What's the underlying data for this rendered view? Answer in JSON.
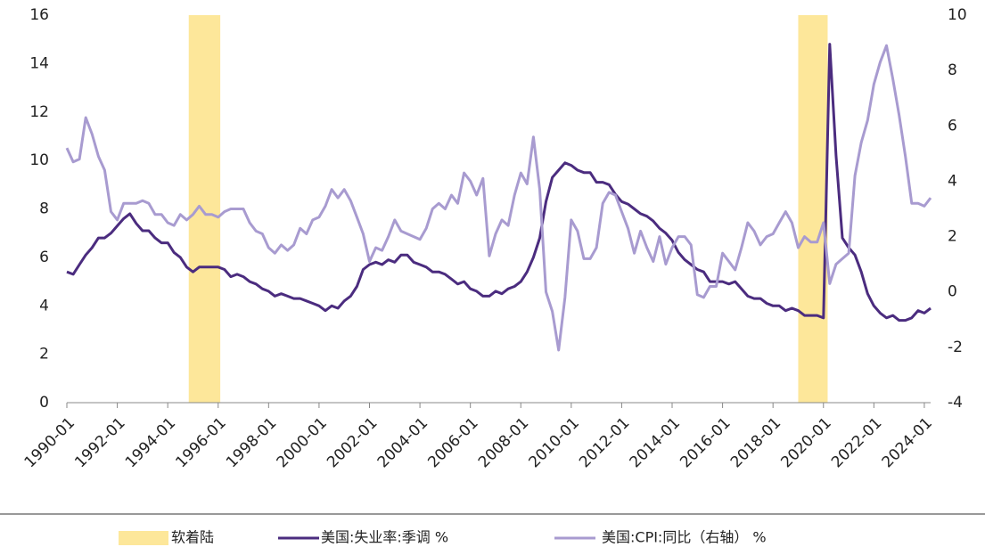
{
  "chart_data": {
    "type": "line",
    "x": [
      "1990-01",
      "1990-04",
      "1990-07",
      "1990-10",
      "1991-01",
      "1991-04",
      "1991-07",
      "1991-10",
      "1992-01",
      "1992-04",
      "1992-07",
      "1992-10",
      "1993-01",
      "1993-04",
      "1993-07",
      "1993-10",
      "1994-01",
      "1994-04",
      "1994-07",
      "1994-10",
      "1995-01",
      "1995-04",
      "1995-07",
      "1995-10",
      "1996-01",
      "1996-04",
      "1996-07",
      "1996-10",
      "1997-01",
      "1997-04",
      "1997-07",
      "1997-10",
      "1998-01",
      "1998-04",
      "1998-07",
      "1998-10",
      "1999-01",
      "1999-04",
      "1999-07",
      "1999-10",
      "2000-01",
      "2000-04",
      "2000-07",
      "2000-10",
      "2001-01",
      "2001-04",
      "2001-07",
      "2001-10",
      "2002-01",
      "2002-04",
      "2002-07",
      "2002-10",
      "2003-01",
      "2003-04",
      "2003-07",
      "2003-10",
      "2004-01",
      "2004-04",
      "2004-07",
      "2004-10",
      "2005-01",
      "2005-04",
      "2005-07",
      "2005-10",
      "2006-01",
      "2006-04",
      "2006-07",
      "2006-10",
      "2007-01",
      "2007-04",
      "2007-07",
      "2007-10",
      "2008-01",
      "2008-04",
      "2008-07",
      "2008-10",
      "2009-01",
      "2009-04",
      "2009-07",
      "2009-10",
      "2010-01",
      "2010-04",
      "2010-07",
      "2010-10",
      "2011-01",
      "2011-04",
      "2011-07",
      "2011-10",
      "2012-01",
      "2012-04",
      "2012-07",
      "2012-10",
      "2013-01",
      "2013-04",
      "2013-07",
      "2013-10",
      "2014-01",
      "2014-04",
      "2014-07",
      "2014-10",
      "2015-01",
      "2015-04",
      "2015-07",
      "2015-10",
      "2016-01",
      "2016-04",
      "2016-07",
      "2016-10",
      "2017-01",
      "2017-04",
      "2017-07",
      "2017-10",
      "2018-01",
      "2018-04",
      "2018-07",
      "2018-10",
      "2019-01",
      "2019-04",
      "2019-07",
      "2019-10",
      "2020-01",
      "2020-04",
      "2020-07",
      "2020-10",
      "2021-01",
      "2021-04",
      "2021-07",
      "2021-10",
      "2022-01",
      "2022-04",
      "2022-07",
      "2022-10",
      "2023-01",
      "2023-04",
      "2023-07",
      "2023-10",
      "2024-01",
      "2024-04"
    ],
    "series": [
      {
        "name": "美国:失业率:季调 %",
        "color": "#4b2c7f",
        "axis": "y",
        "values": [
          5.4,
          5.3,
          5.7,
          6.1,
          6.4,
          6.8,
          6.8,
          7.0,
          7.3,
          7.6,
          7.8,
          7.4,
          7.1,
          7.1,
          6.8,
          6.6,
          6.6,
          6.2,
          6.0,
          5.6,
          5.4,
          5.6,
          5.6,
          5.6,
          5.6,
          5.5,
          5.2,
          5.3,
          5.2,
          5.0,
          4.9,
          4.7,
          4.6,
          4.4,
          4.5,
          4.4,
          4.3,
          4.3,
          4.2,
          4.1,
          4.0,
          3.8,
          4.0,
          3.9,
          4.2,
          4.4,
          4.8,
          5.5,
          5.7,
          5.8,
          5.7,
          5.9,
          5.8,
          6.1,
          6.1,
          5.8,
          5.7,
          5.6,
          5.4,
          5.4,
          5.3,
          5.1,
          4.9,
          5.0,
          4.7,
          4.6,
          4.4,
          4.4,
          4.6,
          4.5,
          4.7,
          4.8,
          5.0,
          5.4,
          6.0,
          6.8,
          8.3,
          9.3,
          9.6,
          9.9,
          9.8,
          9.6,
          9.5,
          9.5,
          9.1,
          9.1,
          9.0,
          8.6,
          8.3,
          8.2,
          8.0,
          7.8,
          7.7,
          7.5,
          7.2,
          7.0,
          6.7,
          6.2,
          5.9,
          5.7,
          5.5,
          5.4,
          5.0,
          5.0,
          5.0,
          4.9,
          5.0,
          4.7,
          4.4,
          4.3,
          4.3,
          4.1,
          4.0,
          4.0,
          3.8,
          3.9,
          3.8,
          3.6,
          3.6,
          3.6,
          3.5,
          14.8,
          10.2,
          6.8,
          6.4,
          6.1,
          5.4,
          4.5,
          4.0,
          3.7,
          3.5,
          3.6,
          3.4,
          3.4,
          3.5,
          3.8,
          3.7,
          3.9
        ]
      },
      {
        "name": "美国:CPI:同比（右轴） %",
        "color": "#a89bd0",
        "axis": "y2",
        "values": [
          5.2,
          4.7,
          4.8,
          6.3,
          5.7,
          4.9,
          4.4,
          2.9,
          2.6,
          3.2,
          3.2,
          3.2,
          3.3,
          3.2,
          2.8,
          2.8,
          2.5,
          2.4,
          2.8,
          2.6,
          2.8,
          3.1,
          2.8,
          2.8,
          2.7,
          2.9,
          3.0,
          3.0,
          3.0,
          2.5,
          2.2,
          2.1,
          1.6,
          1.4,
          1.7,
          1.5,
          1.7,
          2.3,
          2.1,
          2.6,
          2.7,
          3.1,
          3.7,
          3.4,
          3.7,
          3.3,
          2.7,
          2.1,
          1.1,
          1.6,
          1.5,
          2.0,
          2.6,
          2.2,
          2.1,
          2.0,
          1.9,
          2.3,
          3.0,
          3.2,
          3.0,
          3.5,
          3.2,
          4.3,
          4.0,
          3.5,
          4.1,
          1.3,
          2.1,
          2.6,
          2.4,
          3.5,
          4.3,
          3.9,
          5.6,
          3.7,
          0.0,
          -0.7,
          -2.1,
          -0.2,
          2.6,
          2.2,
          1.2,
          1.2,
          1.6,
          3.2,
          3.6,
          3.5,
          2.9,
          2.3,
          1.4,
          2.2,
          1.6,
          1.1,
          2.0,
          1.0,
          1.6,
          2.0,
          2.0,
          1.7,
          -0.1,
          -0.2,
          0.2,
          0.2,
          1.4,
          1.1,
          0.8,
          1.6,
          2.5,
          2.2,
          1.7,
          2.0,
          2.1,
          2.5,
          2.9,
          2.5,
          1.6,
          2.0,
          1.8,
          1.8,
          2.5,
          0.3,
          1.0,
          1.2,
          1.4,
          4.2,
          5.4,
          6.2,
          7.5,
          8.3,
          8.9,
          7.7,
          6.4,
          4.9,
          3.2,
          3.2,
          3.1,
          3.4
        ]
      }
    ],
    "bands": [
      {
        "name": "软着陆",
        "color": "#fde79a",
        "start": "1994-11",
        "end": "1996-02"
      },
      {
        "name": "软着陆",
        "color": "#fde79a",
        "start": "2019-01",
        "end": "2020-03"
      }
    ],
    "legend_bands": "软着陆",
    "xlim": [
      "1990-01",
      "2024-04"
    ],
    "xticks": [
      "1990-01",
      "1992-01",
      "1994-01",
      "1996-01",
      "1998-01",
      "2000-01",
      "2002-01",
      "2004-01",
      "2006-01",
      "2008-01",
      "2010-01",
      "2012-01",
      "2014-01",
      "2016-01",
      "2018-01",
      "2020-01",
      "2022-01",
      "2024-01"
    ],
    "ylim": [
      0,
      16
    ],
    "yticks": [
      0,
      2,
      4,
      6,
      8,
      10,
      12,
      14,
      16
    ],
    "y2lim": [
      -4,
      10
    ],
    "y2ticks": [
      -4,
      -2,
      0,
      2,
      4,
      6,
      8,
      10
    ],
    "legend": "bottom"
  }
}
